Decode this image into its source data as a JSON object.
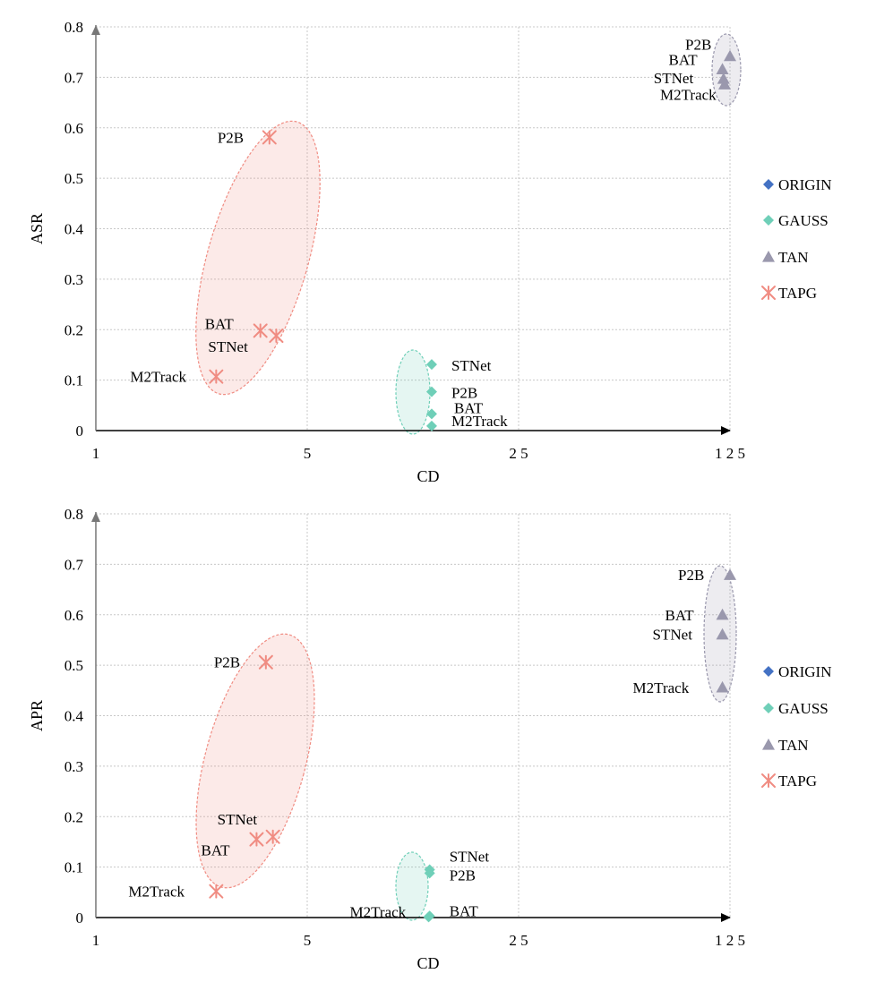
{
  "chart_data": [
    {
      "type": "scatter",
      "xlabel": "CD",
      "ylabel": "ASR",
      "x_scale": "log5",
      "x_ticks": [
        "1",
        "5",
        "2 5",
        "1 2 5"
      ],
      "xlim": [
        1,
        125
      ],
      "ylim": [
        0,
        0.8
      ],
      "y_ticks": [
        "0",
        "0.1",
        "0.2",
        "0.3",
        "0.4",
        "0.5",
        "0.6",
        "0.7",
        "0.8"
      ],
      "grid": true,
      "legend": {
        "placement": "right",
        "entries": [
          "ORIGIN",
          "GAUSS",
          "TAN",
          "TAPG"
        ]
      },
      "series": [
        {
          "name": "ORIGIN",
          "color": "#4472c4",
          "marker": "diamond",
          "points": []
        },
        {
          "name": "GAUSS",
          "color": "#6fcfb8",
          "marker": "diamond",
          "points": [
            {
              "label": "STNet",
              "x": 12.9,
              "y": 0.131
            },
            {
              "label": "P2B",
              "x": 12.9,
              "y": 0.077
            },
            {
              "label": "BAT",
              "x": 12.9,
              "y": 0.033
            },
            {
              "label": "M2Track",
              "x": 12.9,
              "y": 0.009
            }
          ]
        },
        {
          "name": "TAN",
          "color": "#9a98ad",
          "marker": "triangle",
          "points": [
            {
              "label": "P2B",
              "x": 125,
              "y": 0.742
            },
            {
              "label": "BAT",
              "x": 118,
              "y": 0.716
            },
            {
              "label": "STNet",
              "x": 119,
              "y": 0.697
            },
            {
              "label": "M2Track",
              "x": 120,
              "y": 0.686
            }
          ]
        },
        {
          "name": "TAPG",
          "color": "#f08c82",
          "marker": "asterisk",
          "points": [
            {
              "label": "P2B",
              "x": 3.75,
              "y": 0.581
            },
            {
              "label": "BAT",
              "x": 3.5,
              "y": 0.198
            },
            {
              "label": "STNet",
              "x": 3.95,
              "y": 0.188
            },
            {
              "label": "M2Track",
              "x": 2.5,
              "y": 0.107
            }
          ]
        }
      ]
    },
    {
      "type": "scatter",
      "xlabel": "CD",
      "ylabel": "APR",
      "x_scale": "log5",
      "x_ticks": [
        "1",
        "5",
        "2 5",
        "1 2 5"
      ],
      "xlim": [
        1,
        125
      ],
      "ylim": [
        0,
        0.8
      ],
      "y_ticks": [
        "0",
        "0.1",
        "0.2",
        "0.3",
        "0.4",
        "0.5",
        "0.6",
        "0.7",
        "0.8"
      ],
      "grid": true,
      "legend": {
        "placement": "right",
        "entries": [
          "ORIGIN",
          "GAUSS",
          "TAN",
          "TAPG"
        ]
      },
      "series": [
        {
          "name": "ORIGIN",
          "color": "#4472c4",
          "marker": "diamond",
          "points": []
        },
        {
          "name": "GAUSS",
          "color": "#6fcfb8",
          "marker": "diamond",
          "points": [
            {
              "label": "STNet",
              "x": 12.7,
              "y": 0.095
            },
            {
              "label": "P2B",
              "x": 12.7,
              "y": 0.088
            },
            {
              "label": "BAT",
              "x": 12.7,
              "y": 0.003
            },
            {
              "label": "M2Track",
              "x": 12.6,
              "y": 0.001
            }
          ]
        },
        {
          "name": "TAN",
          "color": "#9a98ad",
          "marker": "triangle",
          "points": [
            {
              "label": "P2B",
              "x": 125,
              "y": 0.679
            },
            {
              "label": "BAT",
              "x": 118,
              "y": 0.6
            },
            {
              "label": "STNet",
              "x": 118,
              "y": 0.561
            },
            {
              "label": "M2Track",
              "x": 118,
              "y": 0.456
            }
          ]
        },
        {
          "name": "TAPG",
          "color": "#f08c82",
          "marker": "asterisk",
          "points": [
            {
              "label": "P2B",
              "x": 3.65,
              "y": 0.506
            },
            {
              "label": "STNet",
              "x": 3.85,
              "y": 0.16
            },
            {
              "label": "BAT",
              "x": 3.4,
              "y": 0.155
            },
            {
              "label": "M2Track",
              "x": 2.5,
              "y": 0.052
            }
          ]
        }
      ]
    }
  ]
}
